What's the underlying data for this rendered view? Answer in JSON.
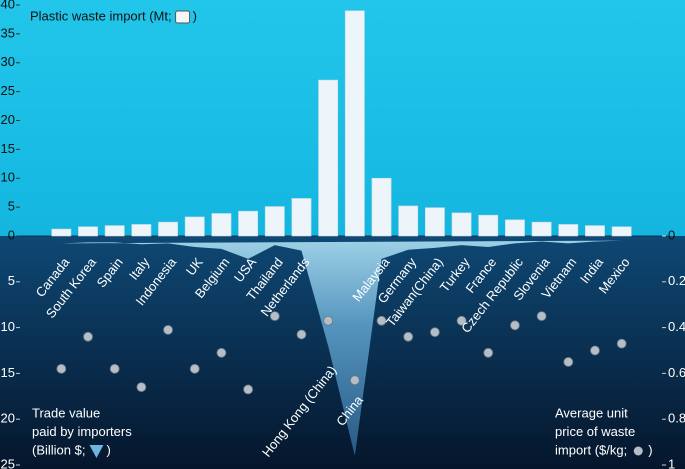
{
  "chart_data": {
    "type": "iceberg",
    "categories": [
      "Canada",
      "South Korea",
      "Spain",
      "Italy",
      "Indonesia",
      "UK",
      "Belgium",
      "USA",
      "Thailand",
      "Netherlands",
      "Hong Kong (China)",
      "China",
      "Malaysia",
      "Germany",
      "Taiwan(China)",
      "Turkey",
      "France",
      "Czech Republic",
      "Slovenia",
      "Vietnam",
      "India",
      "Mexico"
    ],
    "series": [
      {
        "type": "bar",
        "axis": "y",
        "color": "#eef5fa",
        "values": [
          1.2,
          1.6,
          1.8,
          2.0,
          2.4,
          3.3,
          3.9,
          4.3,
          5.1,
          6.5,
          27,
          39,
          10,
          5.2,
          4.9,
          4.0,
          3.6,
          2.8,
          2.4,
          2.0,
          1.8,
          1.6
        ]
      },
      {
        "type": "area",
        "axis": "y3",
        "color": "#8ccbe8",
        "values": [
          0.8,
          0.7,
          0.7,
          0.9,
          0.8,
          1.2,
          1.4,
          2.5,
          1.0,
          1.6,
          12,
          24,
          2.5,
          1.5,
          1.3,
          1.0,
          1.2,
          0.8,
          0.6,
          0.8,
          0.6,
          0.5
        ]
      },
      {
        "type": "scatter",
        "axis": "y2",
        "color": "#b5bec6",
        "values": [
          0.58,
          0.44,
          0.58,
          0.66,
          0.41,
          0.58,
          0.51,
          0.67,
          0.35,
          0.43,
          0.37,
          0.63,
          0.37,
          0.44,
          0.42,
          0.37,
          0.51,
          0.39,
          0.35,
          0.55,
          0.5,
          0.47
        ]
      }
    ],
    "ylim": [
      0,
      40
    ],
    "yticks": [
      0,
      5,
      10,
      15,
      20,
      25,
      30,
      35,
      40
    ],
    "y3lim": [
      0,
      25
    ],
    "y3ticks": [
      5,
      10,
      15,
      20,
      25
    ],
    "y2lim": [
      0,
      1
    ],
    "y2ticks": [
      0,
      0.2,
      0.4,
      0.6,
      0.8,
      1
    ],
    "upper_axis_label": [
      "Plastic waste import (Mt;",
      ")"
    ],
    "lower_left_label": [
      "Trade value",
      "paid by importers",
      "(Billion $;",
      ")"
    ],
    "lower_right_label": [
      "Average unit",
      "price of waste",
      "import ($/kg;",
      ")"
    ]
  }
}
